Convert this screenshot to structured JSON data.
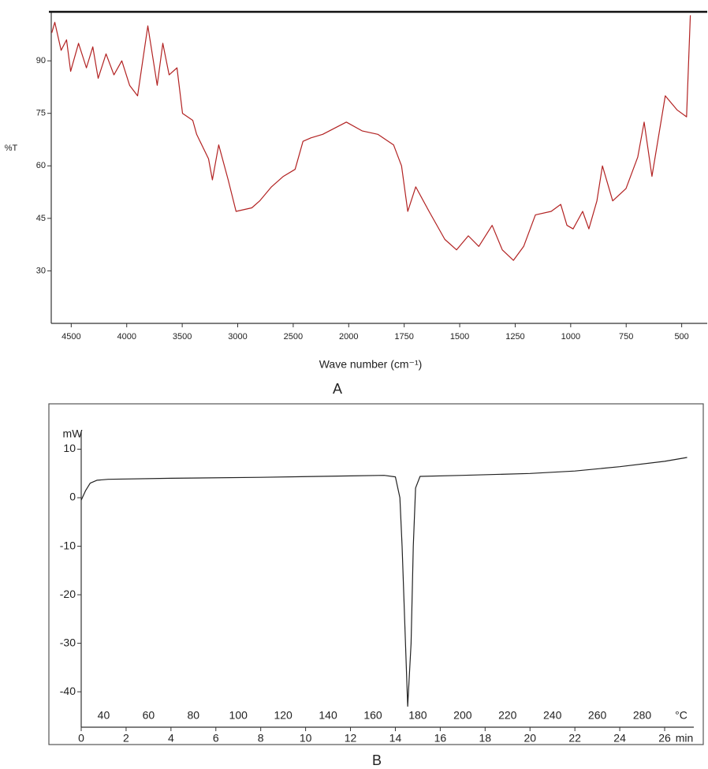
{
  "chart_data": [
    {
      "type": "line",
      "xscale": "piecewise",
      "x_label": "Wave number (cm⁻¹)",
      "y_label": "%T",
      "caption": "A",
      "color": "#b22222",
      "x": [
        4675,
        4648,
        4591,
        4542,
        4505,
        4434,
        4363,
        4306,
        4257,
        4186,
        4115,
        4044,
        3974,
        3902,
        3810,
        3725,
        3675,
        3618,
        3547,
        3497,
        3405,
        3370,
        3263,
        3228,
        3171,
        3086,
        3015,
        2873,
        2802,
        2696,
        2589,
        2483,
        2412,
        2341,
        2234,
        2021,
        1940,
        1869,
        1798,
        1762,
        1734,
        1698,
        1638,
        1567,
        1514,
        1461,
        1414,
        1354,
        1308,
        1258,
        1212,
        1159,
        1088,
        1045,
        1017,
        989,
        946,
        918,
        882,
        857,
        811,
        751,
        698,
        669,
        634,
        574,
        521,
        478,
        461
      ],
      "values": [
        98,
        101,
        93,
        96,
        87,
        95,
        88,
        94,
        85,
        92,
        86,
        90,
        83,
        80,
        100,
        83,
        95,
        86,
        88,
        75,
        73,
        69,
        62,
        56,
        66,
        56,
        47,
        48,
        50,
        54,
        57,
        59,
        67,
        68,
        69,
        72.5,
        70,
        69,
        66,
        60,
        47,
        54,
        47,
        39,
        36,
        40,
        37,
        43,
        36,
        33,
        37,
        46,
        47,
        49,
        43,
        42,
        47,
        42,
        50,
        60,
        50,
        53.5,
        62.5,
        72.5,
        57,
        80,
        76,
        74,
        103
      ],
      "xlim": [
        4680,
        385
      ],
      "xticks": [
        4500,
        4000,
        3500,
        3000,
        2500,
        2000,
        1750,
        1500,
        1250,
        1000,
        750,
        500
      ],
      "ylim": [
        15,
        104
      ],
      "yticks": [
        30,
        45,
        60,
        75,
        90
      ]
    },
    {
      "type": "line",
      "xscale": "linear",
      "y_label": "mW",
      "x_label": "min",
      "x2_label": "°C",
      "caption": "B",
      "color": "#222222",
      "x": [
        0,
        0.2,
        0.4,
        0.7,
        1.2,
        4,
        8,
        12,
        13.5,
        14.0,
        14.2,
        14.3,
        14.45,
        14.55,
        14.7,
        14.8,
        14.9,
        15.1,
        17,
        20,
        22,
        24,
        26,
        27
      ],
      "values": [
        -0.5,
        1.5,
        3,
        3.6,
        3.8,
        4,
        4.2,
        4.5,
        4.6,
        4.3,
        0,
        -10,
        -30,
        -43,
        -30,
        -10,
        2,
        4.4,
        4.6,
        5,
        5.5,
        6.4,
        7.5,
        8.3
      ],
      "xlim": [
        0,
        27.3
      ],
      "xticks": [
        0,
        2,
        4,
        6,
        8,
        10,
        12,
        14,
        16,
        18,
        20,
        22,
        24,
        26
      ],
      "x2lim": [
        30,
        303
      ],
      "x2ticks": [
        40,
        60,
        80,
        100,
        120,
        140,
        160,
        180,
        200,
        220,
        240,
        260,
        280
      ],
      "ylim": [
        -47.3,
        13.5
      ],
      "yticks": [
        10,
        0,
        -10,
        -20,
        -30,
        -40
      ]
    }
  ]
}
